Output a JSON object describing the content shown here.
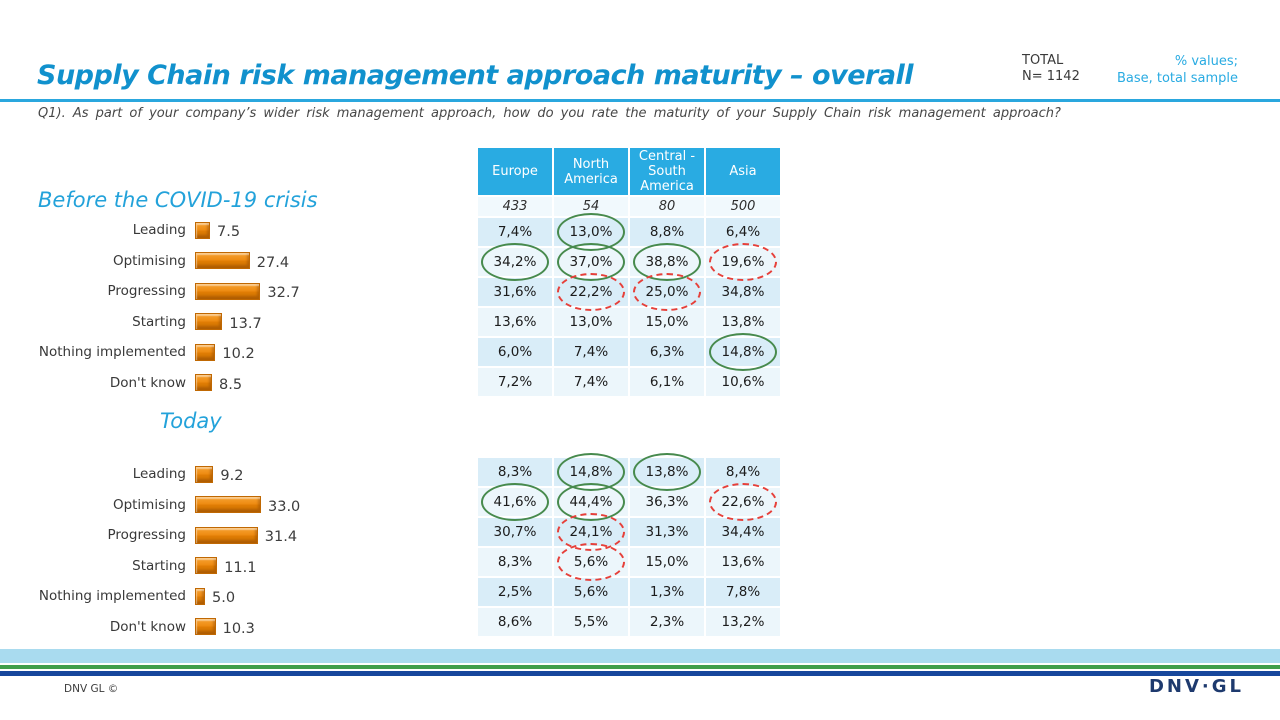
{
  "header": {
    "title": "Supply Chain risk management approach maturity – overall",
    "total_label": "TOTAL",
    "total_value": "N= 1142",
    "note_line1": "% values;",
    "note_line2": "Base, total sample",
    "question": "Q1). As part of your company’s wider risk management approach, how do you rate the maturity of your Supply Chain risk management approach?"
  },
  "chart_data": [
    {
      "type": "bar",
      "orientation": "horizontal",
      "title": "Before the COVID-19 crisis",
      "categories": [
        "Leading",
        "Optimising",
        "Progressing",
        "Starting",
        "Nothing implemented",
        "Don't know"
      ],
      "values": [
        7.5,
        27.4,
        32.7,
        13.7,
        10.2,
        8.5
      ],
      "xlim": [
        0,
        40
      ],
      "bar_color": "#ee8c13",
      "table": {
        "show_header": true,
        "columns": [
          "Europe",
          "North America",
          "Central - South America",
          "Asia"
        ],
        "bases": [
          "433",
          "54",
          "80",
          "500"
        ],
        "rows": [
          [
            "7,4%",
            "13,0%",
            "8,8%",
            "6,4%"
          ],
          [
            "34,2%",
            "37,0%",
            "38,8%",
            "19,6%"
          ],
          [
            "31,6%",
            "22,2%",
            "25,0%",
            "34,8%"
          ],
          [
            "13,6%",
            "13,0%",
            "15,0%",
            "13,8%"
          ],
          [
            "6,0%",
            "7,4%",
            "6,3%",
            "14,8%"
          ],
          [
            "7,2%",
            "7,4%",
            "6,1%",
            "10,6%"
          ]
        ],
        "highlights": [
          [
            null,
            "green",
            null,
            null
          ],
          [
            "green",
            "green",
            "green",
            "red"
          ],
          [
            null,
            "red",
            "red",
            null
          ],
          [
            null,
            null,
            null,
            null
          ],
          [
            null,
            null,
            null,
            "green"
          ],
          [
            null,
            null,
            null,
            null
          ]
        ]
      }
    },
    {
      "type": "bar",
      "orientation": "horizontal",
      "title": "Today",
      "categories": [
        "Leading",
        "Optimising",
        "Progressing",
        "Starting",
        "Nothing implemented",
        "Don't know"
      ],
      "values": [
        9.2,
        33.0,
        31.4,
        11.1,
        5.0,
        10.3
      ],
      "xlim": [
        0,
        40
      ],
      "bar_color": "#ee8c13",
      "table": {
        "show_header": false,
        "rows": [
          [
            "8,3%",
            "14,8%",
            "13,8%",
            "8,4%"
          ],
          [
            "41,6%",
            "44,4%",
            "36,3%",
            "22,6%"
          ],
          [
            "30,7%",
            "24,1%",
            "31,3%",
            "34,4%"
          ],
          [
            "8,3%",
            "5,6%",
            "15,0%",
            "13,6%"
          ],
          [
            "2,5%",
            "5,6%",
            "1,3%",
            "7,8%"
          ],
          [
            "8,6%",
            "5,5%",
            "2,3%",
            "13,2%"
          ]
        ],
        "highlights": [
          [
            null,
            "green",
            "green",
            null
          ],
          [
            "green",
            "green",
            null,
            "red"
          ],
          [
            null,
            "red",
            null,
            null
          ],
          [
            null,
            "red",
            null,
            null
          ],
          [
            null,
            null,
            null,
            null
          ],
          [
            null,
            null,
            null,
            null
          ]
        ]
      }
    }
  ],
  "footer": {
    "copyright": "DNV GL ©",
    "logo": "DNV·GL"
  },
  "colors": {
    "title_blue": "#1191cd",
    "accent_blue": "#29abe2",
    "bar_orange": "#ee8c13",
    "highlight_green": "#478a4d",
    "highlight_red": "#e6403a",
    "table_header_bg": "#29abe2",
    "row_dark": "#d9edf8",
    "row_light": "#ecf6fb",
    "footer_lightblue": "#a9dbef",
    "footer_green": "#3f9e4b",
    "footer_navy": "#17479c",
    "logo_navy": "#1e3a6e"
  }
}
